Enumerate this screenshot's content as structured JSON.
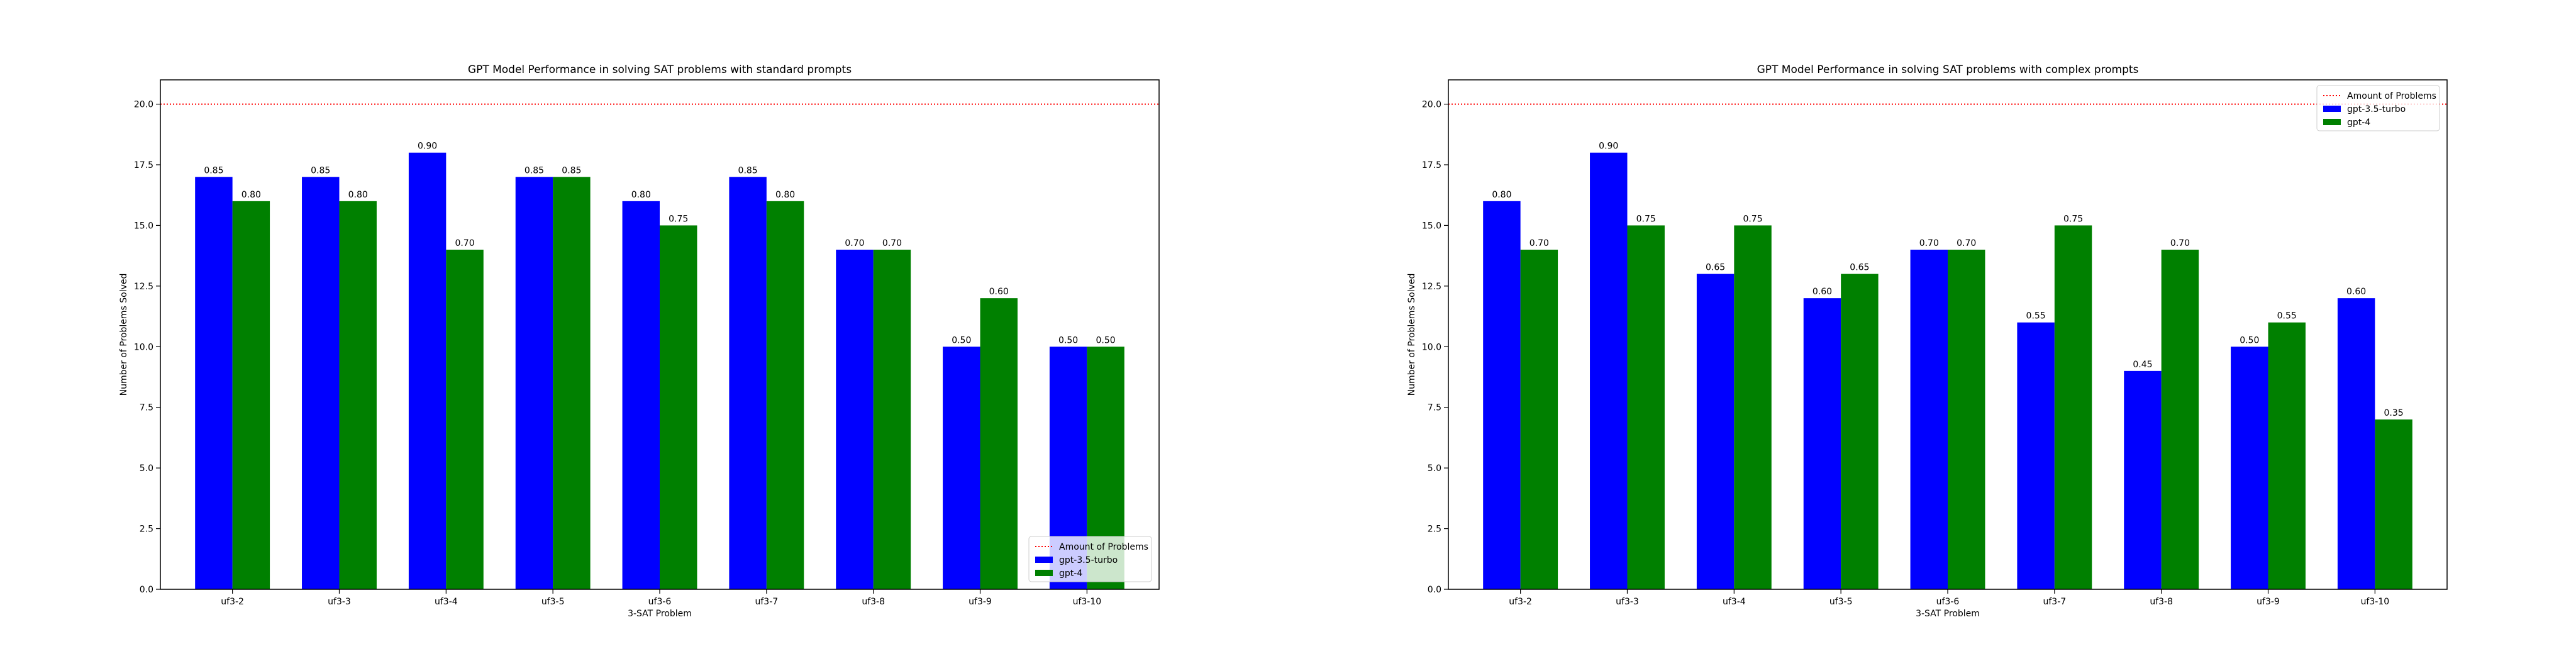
{
  "chart_data": [
    {
      "type": "bar",
      "title": "GPT Model Performance in solving SAT problems with standard prompts",
      "xlabel": "3-SAT Problem",
      "ylabel": "Number of Problems Solved",
      "ylim": [
        0,
        21
      ],
      "yticks": [
        "0.0",
        "2.5",
        "5.0",
        "7.5",
        "10.0",
        "12.5",
        "15.0",
        "17.5",
        "20.0"
      ],
      "categories": [
        "uf3-2",
        "uf3-3",
        "uf3-4",
        "uf3-5",
        "uf3-6",
        "uf3-7",
        "uf3-8",
        "uf3-9",
        "uf3-10"
      ],
      "reference_line": {
        "name": "Amount of Problems",
        "value": 20,
        "color": "#ff0000",
        "style": "dotted"
      },
      "series": [
        {
          "name": "gpt-3.5-turbo",
          "color": "#0000ff",
          "values": [
            17,
            17,
            18,
            17,
            16,
            17,
            14,
            10,
            10
          ],
          "labels": [
            "0.85",
            "0.85",
            "0.90",
            "0.85",
            "0.80",
            "0.85",
            "0.70",
            "0.50",
            "0.50"
          ]
        },
        {
          "name": "gpt-4",
          "color": "#008000",
          "values": [
            16,
            16,
            14,
            17,
            15,
            16,
            14,
            12,
            10
          ],
          "labels": [
            "0.80",
            "0.80",
            "0.70",
            "0.85",
            "0.75",
            "0.80",
            "0.70",
            "0.60",
            "0.50"
          ]
        }
      ],
      "grid": false,
      "legend_position": "lower-right"
    },
    {
      "type": "bar",
      "title": "GPT Model Performance in solving SAT problems with complex prompts",
      "xlabel": "3-SAT Problem",
      "ylabel": "Number of Problems Solved",
      "ylim": [
        0,
        21
      ],
      "yticks": [
        "0.0",
        "2.5",
        "5.0",
        "7.5",
        "10.0",
        "12.5",
        "15.0",
        "17.5",
        "20.0"
      ],
      "categories": [
        "uf3-2",
        "uf3-3",
        "uf3-4",
        "uf3-5",
        "uf3-6",
        "uf3-7",
        "uf3-8",
        "uf3-9",
        "uf3-10"
      ],
      "reference_line": {
        "name": "Amount of Problems",
        "value": 20,
        "color": "#ff0000",
        "style": "dotted"
      },
      "series": [
        {
          "name": "gpt-3.5-turbo",
          "color": "#0000ff",
          "values": [
            16,
            18,
            13,
            12,
            14,
            11,
            9,
            10,
            12
          ],
          "labels": [
            "0.80",
            "0.90",
            "0.65",
            "0.60",
            "0.70",
            "0.55",
            "0.45",
            "0.50",
            "0.60"
          ]
        },
        {
          "name": "gpt-4",
          "color": "#008000",
          "values": [
            14,
            15,
            15,
            13,
            14,
            15,
            14,
            11,
            7
          ],
          "labels": [
            "0.70",
            "0.75",
            "0.75",
            "0.65",
            "0.70",
            "0.75",
            "0.70",
            "0.55",
            "0.35"
          ]
        }
      ],
      "grid": false,
      "legend_position": "upper-right"
    }
  ]
}
